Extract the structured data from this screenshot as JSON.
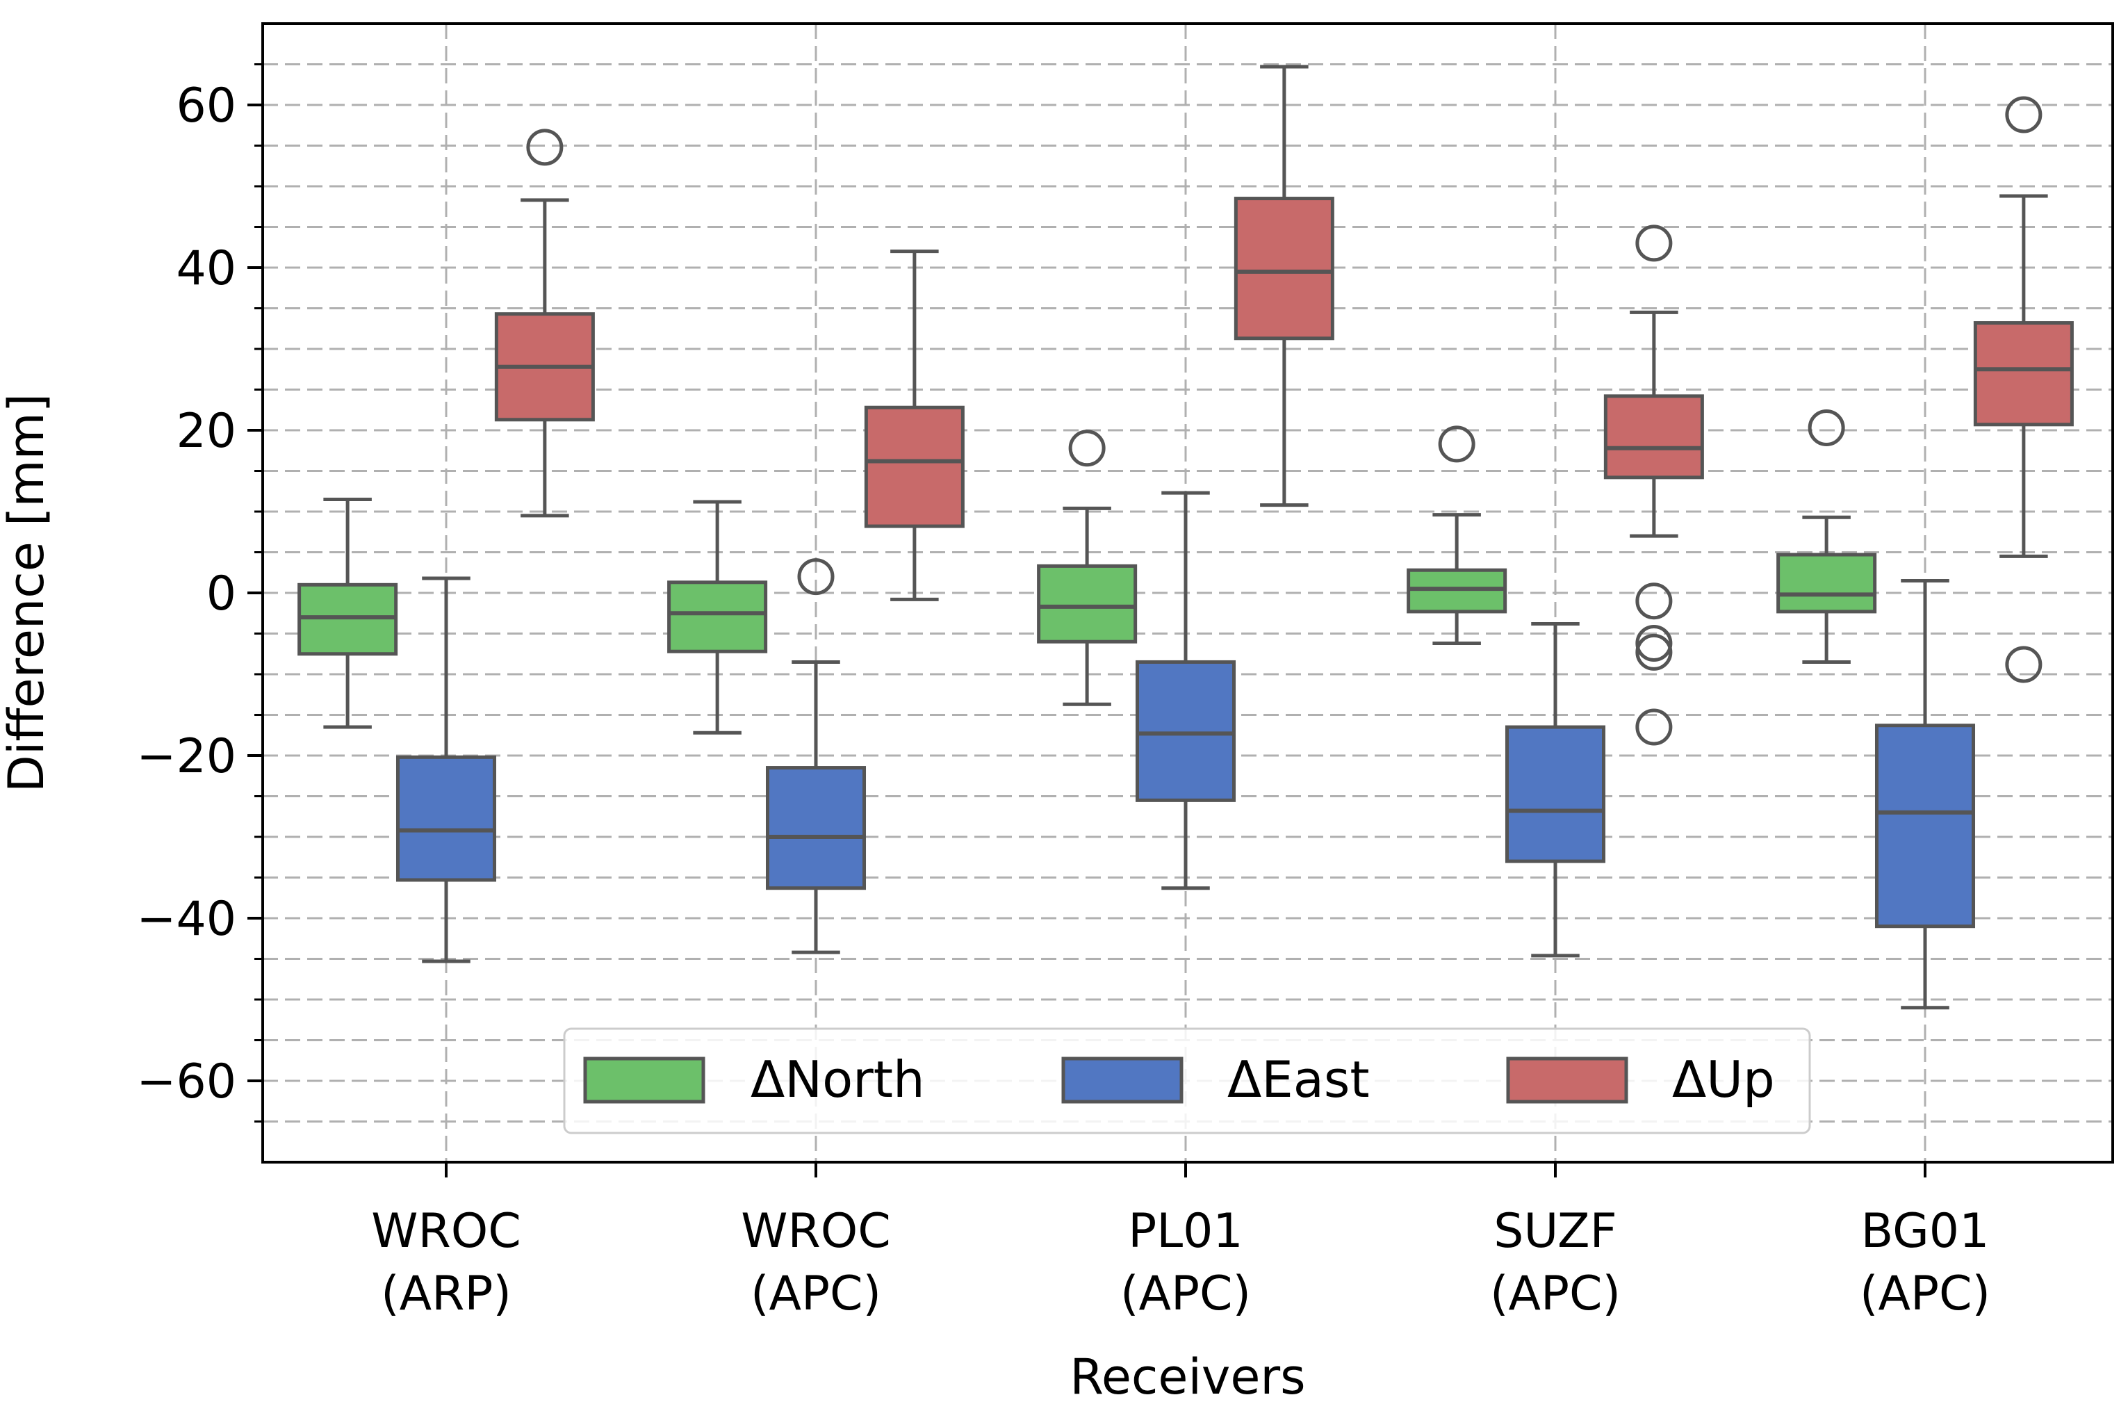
{
  "chart_data": {
    "type": "box",
    "xlabel": "Receivers",
    "ylabel": "Difference [mm]",
    "ylim": [
      -70,
      70
    ],
    "yticks": [
      -60,
      -40,
      -20,
      0,
      20,
      40,
      60
    ],
    "ytick_labels": [
      "−60",
      "−40",
      "−20",
      "0",
      "20",
      "40",
      "60"
    ],
    "y_minor_step": 5,
    "grid": "dashed, major and minor",
    "legend_position": "bottom-center",
    "categories": [
      {
        "line1": "WROC",
        "line2": "(ARP)"
      },
      {
        "line1": "WROC",
        "line2": "(APC)"
      },
      {
        "line1": "PL01",
        "line2": "(APC)"
      },
      {
        "line1": "SUZF",
        "line2": "(APC)"
      },
      {
        "line1": "BG01",
        "line2": "(APC)"
      }
    ],
    "series": [
      {
        "name": "ΔNorth",
        "color": "#6cc06a",
        "boxes": [
          {
            "whisker_low": -16.5,
            "q1": -7.5,
            "median": -3,
            "q3": 1,
            "whisker_high": 11.5,
            "outliers": []
          },
          {
            "whisker_low": -17.2,
            "q1": -7.2,
            "median": -2.5,
            "q3": 1.3,
            "whisker_high": 11.2,
            "outliers": []
          },
          {
            "whisker_low": -13.7,
            "q1": -6,
            "median": -1.7,
            "q3": 3.3,
            "whisker_high": 10.4,
            "outliers": [
              17.8
            ]
          },
          {
            "whisker_low": -6.2,
            "q1": -2.3,
            "median": 0.5,
            "q3": 2.8,
            "whisker_high": 9.6,
            "outliers": [
              18.3
            ]
          },
          {
            "whisker_low": -8.5,
            "q1": -2.3,
            "median": -0.2,
            "q3": 4.7,
            "whisker_high": 9.3,
            "outliers": [
              20.3
            ]
          }
        ]
      },
      {
        "name": "ΔEast",
        "color": "#5177c2",
        "boxes": [
          {
            "whisker_low": -45.3,
            "q1": -35.3,
            "median": -29.2,
            "q3": -20.2,
            "whisker_high": 1.8,
            "outliers": []
          },
          {
            "whisker_low": -44.2,
            "q1": -36.3,
            "median": -30,
            "q3": -21.5,
            "whisker_high": -8.5,
            "outliers": [
              2
            ]
          },
          {
            "whisker_low": -36.3,
            "q1": -25.5,
            "median": -17.3,
            "q3": -8.5,
            "whisker_high": 12.3,
            "outliers": []
          },
          {
            "whisker_low": -44.6,
            "q1": -33,
            "median": -26.8,
            "q3": -16.5,
            "whisker_high": -3.8,
            "outliers": []
          },
          {
            "whisker_low": -51,
            "q1": -41,
            "median": -27,
            "q3": -16.3,
            "whisker_high": 1.5,
            "outliers": []
          }
        ]
      },
      {
        "name": "ΔUp",
        "color": "#c86a6a",
        "boxes": [
          {
            "whisker_low": 9.5,
            "q1": 21.3,
            "median": 27.8,
            "q3": 34.3,
            "whisker_high": 48.3,
            "outliers": [
              54.8
            ]
          },
          {
            "whisker_low": -0.8,
            "q1": 8.2,
            "median": 16.2,
            "q3": 22.8,
            "whisker_high": 42,
            "outliers": []
          },
          {
            "whisker_low": 10.8,
            "q1": 31.3,
            "median": 39.5,
            "q3": 48.5,
            "whisker_high": 64.7,
            "outliers": []
          },
          {
            "whisker_low": 7,
            "q1": 14.2,
            "median": 17.8,
            "q3": 24.2,
            "whisker_high": 34.5,
            "outliers": [
              43,
              -1,
              -6.2,
              -7.3,
              -16.5
            ]
          },
          {
            "whisker_low": 4.5,
            "q1": 20.7,
            "median": 27.5,
            "q3": 33.2,
            "whisker_high": 48.8,
            "outliers": [
              58.8,
              -8.8
            ]
          }
        ]
      }
    ]
  }
}
